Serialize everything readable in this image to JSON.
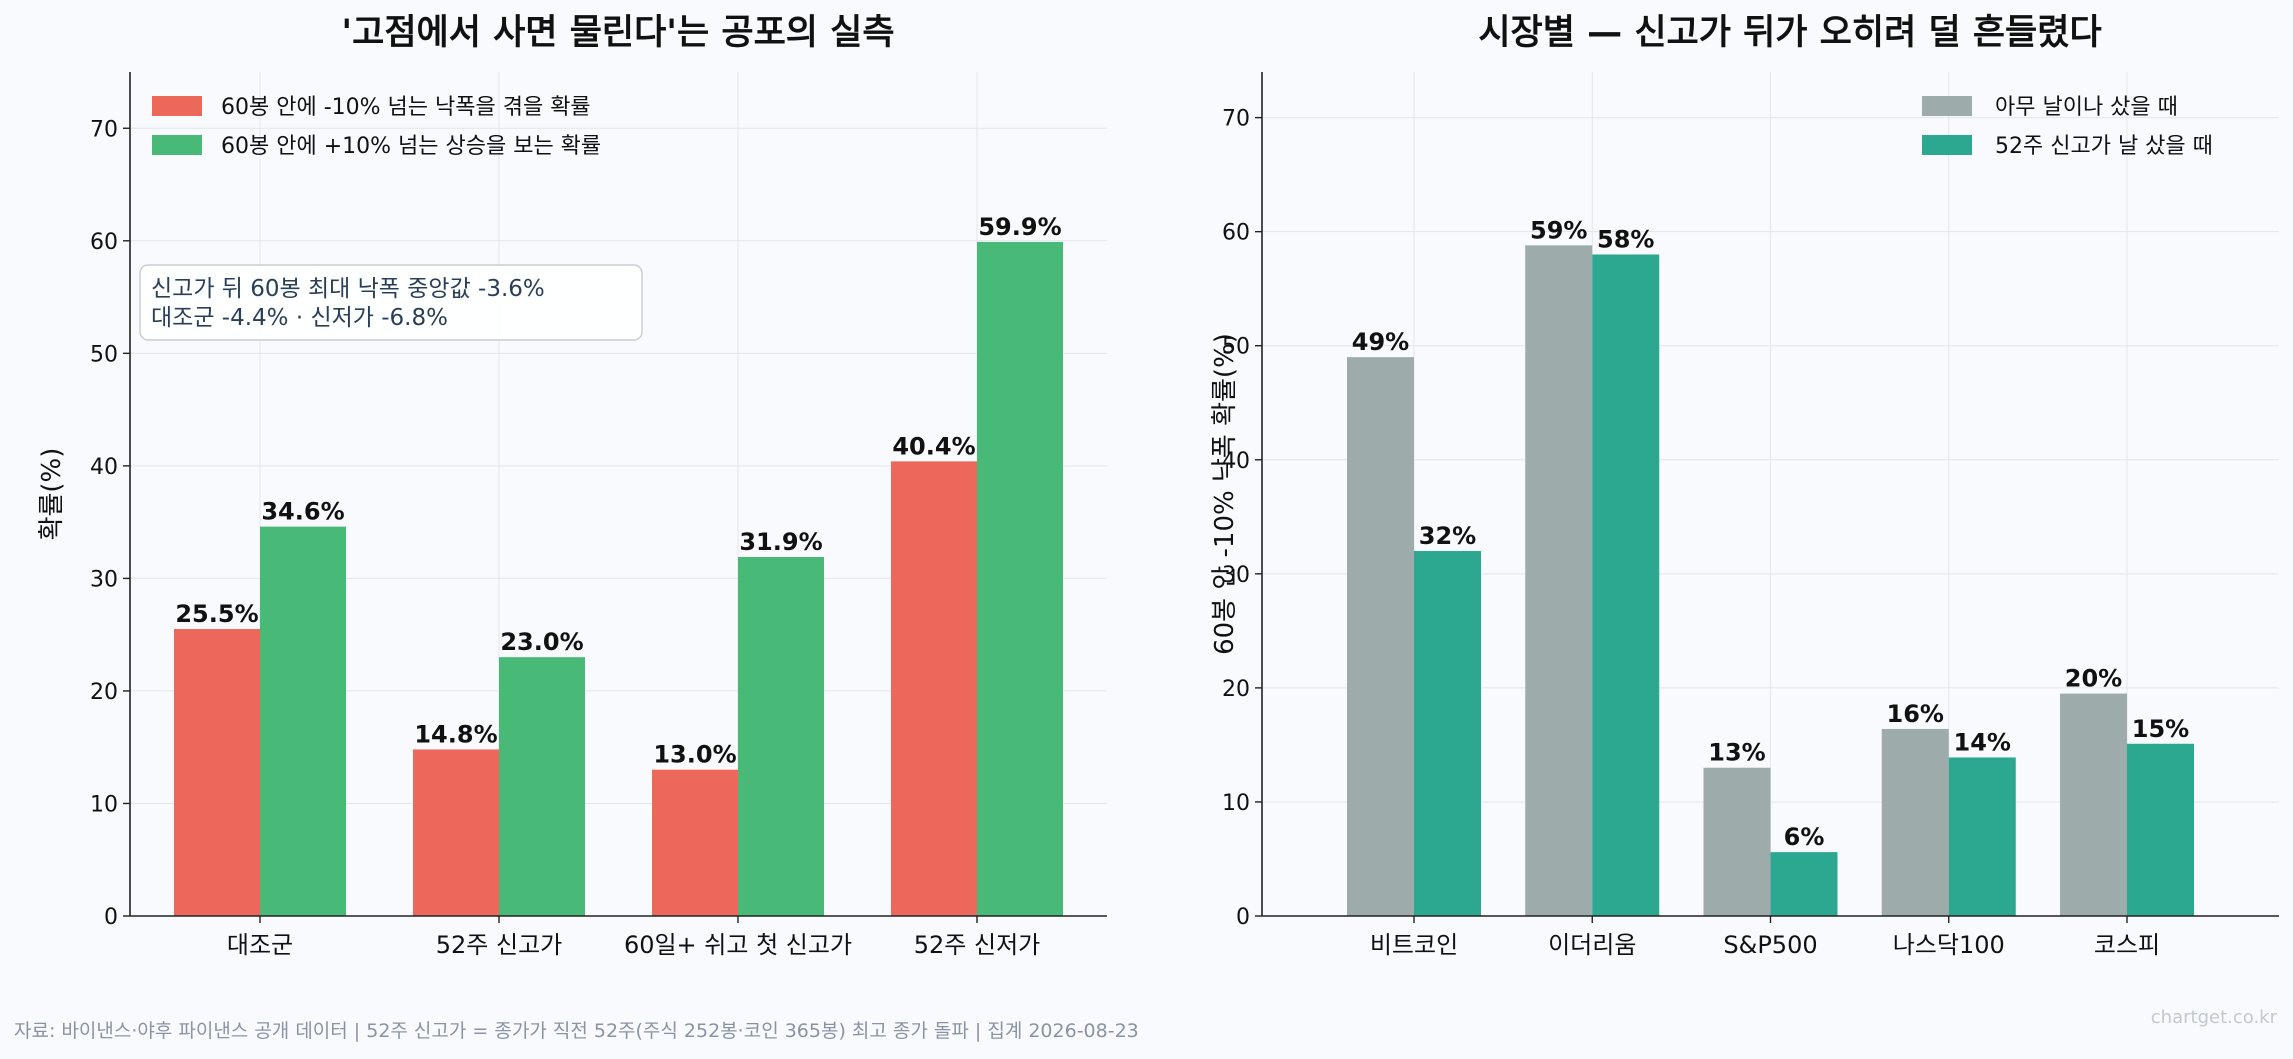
{
  "chart_data": [
    {
      "type": "bar",
      "title": "'고점에서 사면 물린다'는 공포의 실측",
      "xlabel": "",
      "ylabel": "확률(%)",
      "categories": [
        "대조군",
        "52주 신고가",
        "60일+ 쉬고 첫 신고가",
        "52주 신저가"
      ],
      "series": [
        {
          "name": "60봉 안에 -10% 넘는 낙폭을 겪을 확률",
          "values": [
            25.5,
            14.8,
            13.0,
            40.4
          ],
          "labels": [
            "25.5%",
            "14.8%",
            "13.0%",
            "40.4%"
          ],
          "color": "#eb685b"
        },
        {
          "name": "60봉 안에 +10% 넘는 상승을 보는 확률",
          "values": [
            34.6,
            23.0,
            31.9,
            59.9
          ],
          "labels": [
            "34.6%",
            "23.0%",
            "31.9%",
            "59.9%"
          ],
          "color": "#48b977"
        }
      ],
      "ylim": [
        0,
        75
      ],
      "yticks": [
        0,
        10,
        20,
        30,
        40,
        50,
        60,
        70
      ],
      "grid": true,
      "legend": "top-left",
      "annotation": [
        "신고가 뒤 60봉 최대 낙폭 중앙값 -3.6%",
        "대조군 -4.4% · 신저가 -6.8%"
      ]
    },
    {
      "type": "bar",
      "title": "시장별 — 신고가 뒤가 오히려 덜 흔들렸다",
      "xlabel": "",
      "ylabel": "60봉 안 -10% 낙폭 확률(%)",
      "categories": [
        "비트코인",
        "이더리움",
        "S&P500",
        "나스닥100",
        "코스피"
      ],
      "series": [
        {
          "name": "아무 날이나 샀을 때",
          "values": [
            49,
            58.8,
            13,
            16.4,
            19.5
          ],
          "labels": [
            "49%",
            "59%",
            "13%",
            "16%",
            "20%"
          ],
          "color": "#9eabab"
        },
        {
          "name": "52주 신고가 날 샀을 때",
          "values": [
            32,
            58,
            5.6,
            13.9,
            15.1
          ],
          "labels": [
            "32%",
            "58%",
            "6%",
            "14%",
            "15%"
          ],
          "color": "#2ca891"
        }
      ],
      "ylim": [
        0,
        74
      ],
      "yticks": [
        0,
        10,
        20,
        30,
        40,
        50,
        60,
        70
      ],
      "grid": true,
      "legend": "top-right"
    }
  ],
  "footer": {
    "source": "자료: 바이낸스·야후 파이낸스 공개 데이터 | 52주 신고가 = 종가가 직전 52주(주식 252봉·코인 365봉) 최고 종가 돌파 | 집계 2026-08-23",
    "watermark": "chartget.co.kr"
  },
  "colors": {
    "background": "#f8fafd",
    "grid": "#e3e6ea",
    "axis": "#222222",
    "text": "#111111",
    "footer": "#8a93a6",
    "annotation_text": "#2b3e58"
  }
}
